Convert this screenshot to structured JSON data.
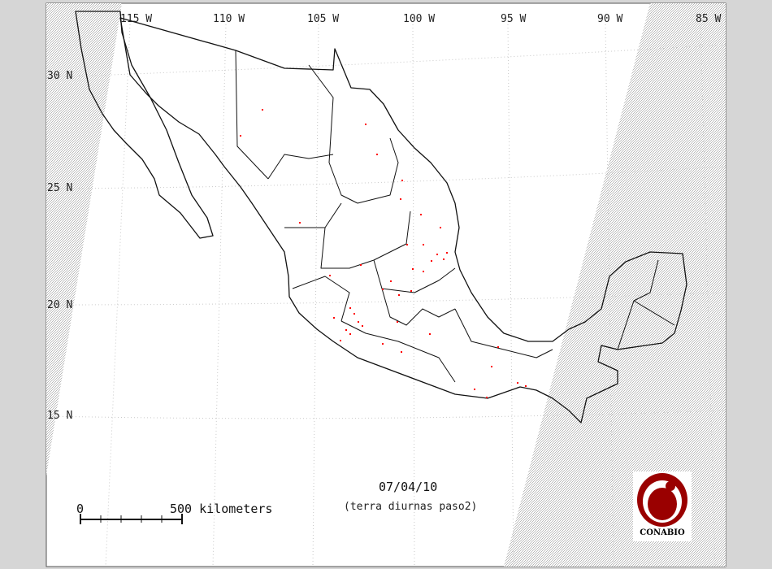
{
  "map": {
    "date_label": "07/04/10",
    "subtitle": "(terra diurnas paso2)",
    "scale_bar": {
      "start_label": "0",
      "end_label": "500 kilometers"
    },
    "longitude_labels": [
      "115 W",
      "110 W",
      "105 W",
      "100 W",
      "95 W",
      "90 W",
      "85 W"
    ],
    "latitude_labels": [
      "30 N",
      "25 N",
      "20 N",
      "15 N"
    ],
    "logo": {
      "text": "CONABIO",
      "color": "#9a0000"
    },
    "colors": {
      "fire_points": "#ff0000",
      "outline": "#000000",
      "outside_swath": "#cfcfcf",
      "frame": "#d6d6d6"
    },
    "layers": [
      "state-boundaries",
      "satellite-swath",
      "graticule",
      "fire-hotspots"
    ]
  }
}
